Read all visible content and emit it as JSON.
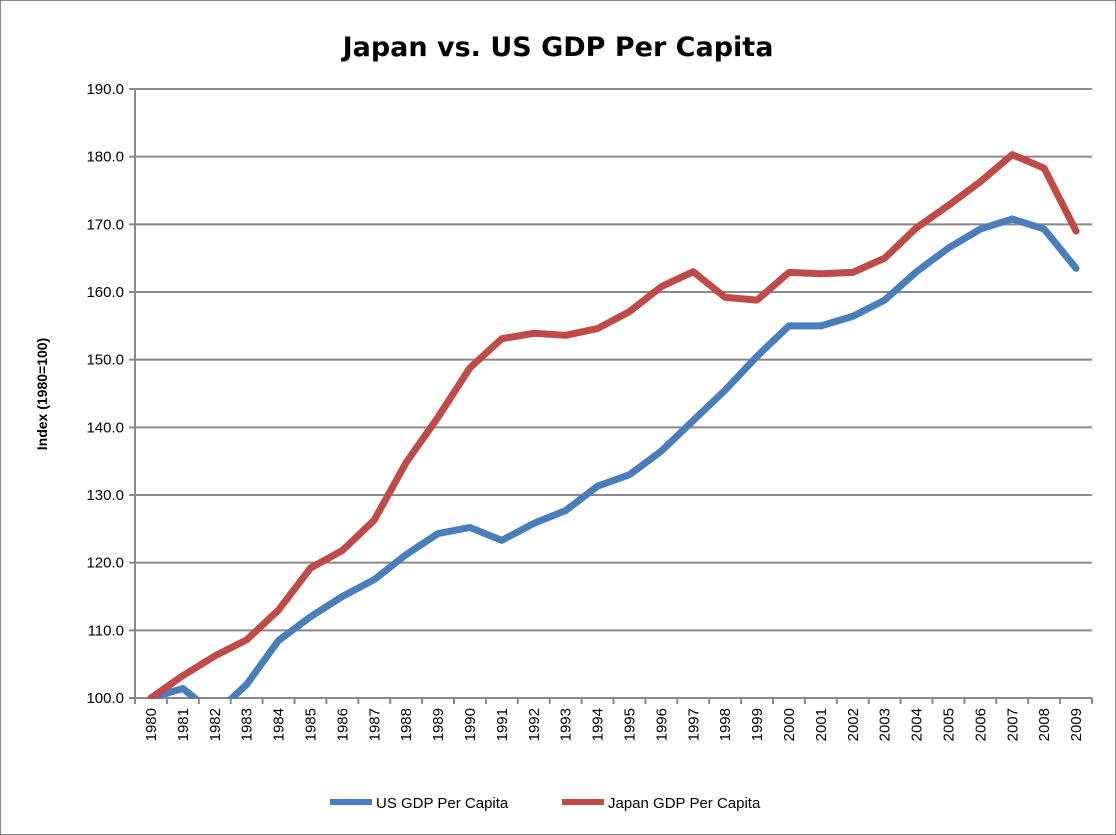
{
  "chart_data": {
    "type": "line",
    "title": "Japan vs. US GDP Per Capita",
    "xlabel": "",
    "ylabel": "Index (1980=100)",
    "ylim": [
      100,
      190
    ],
    "yticks": [
      "100.0",
      "110.0",
      "120.0",
      "130.0",
      "140.0",
      "150.0",
      "160.0",
      "170.0",
      "180.0",
      "190.0"
    ],
    "grid": true,
    "legend_position": "bottom",
    "categories": [
      "1980",
      "1981",
      "1982",
      "1983",
      "1984",
      "1985",
      "1986",
      "1987",
      "1988",
      "1989",
      "1990",
      "1991",
      "1992",
      "1993",
      "1994",
      "1995",
      "1996",
      "1997",
      "1998",
      "1999",
      "2000",
      "2001",
      "2002",
      "2003",
      "2004",
      "2005",
      "2006",
      "2007",
      "2008",
      "2009"
    ],
    "series": [
      {
        "name": "US GDP Per Capita",
        "color": "#4a7ebb",
        "values": [
          100,
          101.4,
          97.6,
          102,
          108.5,
          112,
          115,
          117.5,
          121.2,
          124.3,
          125.2,
          123.3,
          125.8,
          127.7,
          131.3,
          133,
          136.5,
          141,
          145.5,
          150.5,
          155,
          155,
          156.4,
          158.8,
          163,
          166.5,
          169.3,
          170.8,
          169.3,
          163.5
        ]
      },
      {
        "name": "Japan GDP Per Capita",
        "color": "#be4b48",
        "values": [
          100,
          103.3,
          106.2,
          108.6,
          113,
          119.2,
          121.8,
          126.3,
          134.8,
          141.5,
          148.8,
          153.1,
          153.9,
          153.6,
          154.6,
          157.1,
          160.8,
          163,
          159.2,
          158.8,
          162.9,
          162.7,
          162.9,
          165,
          169.5,
          172.8,
          176.3,
          180.3,
          178.3,
          169
        ]
      }
    ]
  }
}
